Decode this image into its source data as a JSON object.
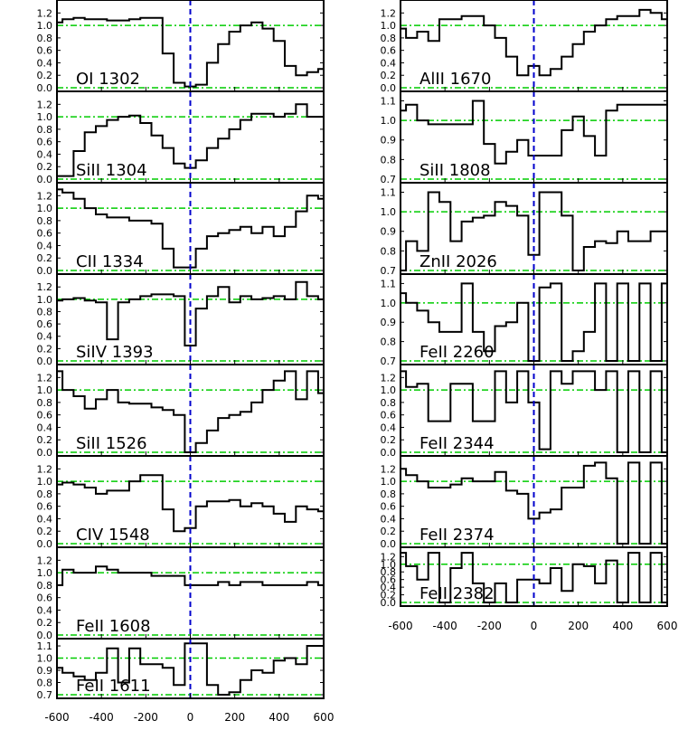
{
  "chart_data": [
    {
      "type": "line",
      "label": "OI 1302",
      "yticks": [
        "0.0",
        "0.2",
        "0.4",
        "0.6",
        "0.8",
        "1.0",
        "1.2"
      ],
      "ylim": [
        0,
        1.35
      ],
      "xlim": [
        -600,
        600
      ],
      "x": [
        -600,
        -550,
        -500,
        -450,
        -400,
        -350,
        -300,
        -250,
        -200,
        -150,
        -100,
        -50,
        0,
        50,
        100,
        150,
        200,
        250,
        300,
        350,
        400,
        450,
        500,
        550,
        600
      ],
      "values": [
        1.05,
        1.1,
        1.12,
        1.1,
        1.1,
        1.08,
        1.08,
        1.1,
        1.12,
        1.12,
        0.55,
        0.08,
        0.02,
        0.05,
        0.4,
        0.7,
        0.9,
        1.0,
        1.05,
        0.95,
        0.75,
        0.35,
        0.2,
        0.25,
        0.3
      ]
    },
    {
      "type": "line",
      "label": "SiII 1304",
      "yticks": [
        "0.0",
        "0.2",
        "0.4",
        "0.6",
        "0.8",
        "1.0",
        "1.2"
      ],
      "ylim": [
        0,
        1.35
      ],
      "xlim": [
        -600,
        600
      ],
      "x": [
        -600,
        -550,
        -500,
        -450,
        -400,
        -350,
        -300,
        -250,
        -200,
        -150,
        -100,
        -50,
        0,
        50,
        100,
        150,
        200,
        250,
        300,
        350,
        400,
        450,
        500,
        550,
        600
      ],
      "values": [
        0.05,
        0.05,
        0.45,
        0.75,
        0.85,
        0.95,
        1.0,
        1.02,
        0.9,
        0.7,
        0.5,
        0.25,
        0.18,
        0.3,
        0.5,
        0.65,
        0.8,
        0.95,
        1.05,
        1.05,
        1.0,
        1.05,
        1.2,
        1.0,
        1.0
      ]
    },
    {
      "type": "line",
      "label": "CII 1334",
      "yticks": [
        "0.0",
        "0.2",
        "0.4",
        "0.6",
        "0.8",
        "1.0",
        "1.2"
      ],
      "ylim": [
        0,
        1.35
      ],
      "xlim": [
        -600,
        600
      ],
      "x": [
        -600,
        -550,
        -500,
        -450,
        -400,
        -350,
        -300,
        -250,
        -200,
        -150,
        -100,
        -50,
        0,
        50,
        100,
        150,
        200,
        250,
        300,
        350,
        400,
        450,
        500,
        550,
        600
      ],
      "values": [
        1.3,
        1.25,
        1.15,
        1.0,
        0.9,
        0.85,
        0.85,
        0.8,
        0.8,
        0.75,
        0.35,
        0.05,
        0.05,
        0.35,
        0.55,
        0.6,
        0.65,
        0.7,
        0.6,
        0.7,
        0.55,
        0.7,
        0.95,
        1.2,
        1.15
      ]
    },
    {
      "type": "line",
      "label": "SiIV 1393",
      "yticks": [
        "0.0",
        "0.2",
        "0.4",
        "0.6",
        "0.8",
        "1.0",
        "1.2"
      ],
      "ylim": [
        0,
        1.35
      ],
      "xlim": [
        -600,
        600
      ],
      "x": [
        -600,
        -550,
        -500,
        -450,
        -400,
        -350,
        -300,
        -250,
        -200,
        -150,
        -100,
        -50,
        0,
        50,
        100,
        150,
        200,
        250,
        300,
        350,
        400,
        450,
        500,
        550,
        600
      ],
      "values": [
        0.98,
        1.0,
        1.02,
        0.98,
        0.95,
        0.35,
        0.95,
        1.0,
        1.05,
        1.08,
        1.08,
        1.05,
        0.25,
        0.85,
        1.05,
        1.2,
        0.95,
        1.05,
        1.0,
        1.02,
        1.05,
        1.0,
        1.28,
        1.05,
        1.0
      ]
    },
    {
      "type": "line",
      "label": "SiII 1526",
      "yticks": [
        "0.0",
        "0.2",
        "0.4",
        "0.6",
        "0.8",
        "1.0",
        "1.2"
      ],
      "ylim": [
        0,
        1.35
      ],
      "xlim": [
        -600,
        600
      ],
      "x": [
        -600,
        -550,
        -500,
        -450,
        -400,
        -350,
        -300,
        -250,
        -200,
        -150,
        -100,
        -50,
        0,
        50,
        100,
        150,
        200,
        250,
        300,
        350,
        400,
        450,
        500,
        550,
        600
      ],
      "values": [
        1.3,
        1.0,
        0.9,
        0.7,
        0.85,
        1.0,
        0.8,
        0.78,
        0.78,
        0.72,
        0.68,
        0.6,
        0.0,
        0.15,
        0.35,
        0.55,
        0.6,
        0.65,
        0.8,
        1.0,
        1.15,
        1.3,
        0.85,
        1.3,
        0.95
      ]
    },
    {
      "type": "line",
      "label": "CIV 1548",
      "yticks": [
        "0.0",
        "0.2",
        "0.4",
        "0.6",
        "0.8",
        "1.0",
        "1.2"
      ],
      "ylim": [
        0,
        1.35
      ],
      "xlim": [
        -600,
        600
      ],
      "x": [
        -600,
        -550,
        -500,
        -450,
        -400,
        -350,
        -300,
        -250,
        -200,
        -150,
        -100,
        -50,
        0,
        50,
        100,
        150,
        200,
        250,
        300,
        350,
        400,
        450,
        500,
        550,
        600
      ],
      "values": [
        0.95,
        0.98,
        0.95,
        0.9,
        0.8,
        0.85,
        0.85,
        1.0,
        1.1,
        1.1,
        0.55,
        0.2,
        0.25,
        0.6,
        0.68,
        0.68,
        0.7,
        0.6,
        0.65,
        0.6,
        0.48,
        0.35,
        0.6,
        0.55,
        0.52
      ]
    },
    {
      "type": "line",
      "label": "FeII 1608",
      "yticks": [
        "0.0",
        "0.2",
        "0.4",
        "0.6",
        "0.8",
        "1.0",
        "1.2"
      ],
      "ylim": [
        0,
        1.35
      ],
      "xlim": [
        -600,
        600
      ],
      "x": [
        -600,
        -550,
        -500,
        -450,
        -400,
        -350,
        -300,
        -250,
        -200,
        -150,
        -100,
        -50,
        0,
        50,
        100,
        150,
        200,
        250,
        300,
        350,
        400,
        450,
        500,
        550,
        600
      ],
      "values": [
        0.8,
        1.05,
        1.0,
        1.0,
        1.1,
        1.05,
        1.0,
        1.0,
        1.0,
        0.95,
        0.95,
        0.95,
        0.8,
        0.8,
        0.8,
        0.85,
        0.8,
        0.85,
        0.85,
        0.8,
        0.8,
        0.8,
        0.8,
        0.85,
        0.8
      ]
    },
    {
      "type": "line",
      "label": "FeII 1611",
      "yticks": [
        "0.7",
        "0.8",
        "0.9",
        "1.0",
        "1.1"
      ],
      "ylim": [
        0.7,
        1.13
      ],
      "xlim": [
        -600,
        600
      ],
      "x": [
        -600,
        -550,
        -500,
        -450,
        -400,
        -350,
        -300,
        -250,
        -200,
        -150,
        -100,
        -50,
        0,
        50,
        100,
        150,
        200,
        250,
        300,
        350,
        400,
        450,
        500,
        550,
        600
      ],
      "values": [
        0.92,
        0.88,
        0.85,
        0.82,
        0.88,
        1.08,
        0.8,
        1.08,
        0.95,
        0.95,
        0.92,
        0.78,
        1.12,
        1.12,
        0.78,
        0.7,
        0.72,
        0.82,
        0.9,
        0.88,
        0.98,
        1.0,
        0.95,
        1.1,
        1.1
      ]
    },
    {
      "type": "line",
      "label": "AlII 1670",
      "yticks": [
        "0.0",
        "0.2",
        "0.4",
        "0.6",
        "0.8",
        "1.0",
        "1.2"
      ],
      "ylim": [
        0,
        1.35
      ],
      "xlim": [
        -600,
        600
      ],
      "x": [
        -600,
        -550,
        -500,
        -450,
        -400,
        -350,
        -300,
        -250,
        -200,
        -150,
        -100,
        -50,
        0,
        50,
        100,
        150,
        200,
        250,
        300,
        350,
        400,
        450,
        500,
        550,
        600
      ],
      "values": [
        0.95,
        0.8,
        0.9,
        0.75,
        1.1,
        1.1,
        1.15,
        1.15,
        1.0,
        0.8,
        0.5,
        0.2,
        0.35,
        0.2,
        0.3,
        0.5,
        0.7,
        0.9,
        1.0,
        1.1,
        1.15,
        1.15,
        1.25,
        1.2,
        1.1
      ]
    },
    {
      "type": "line",
      "label": "SiII 1808",
      "yticks": [
        "0.7",
        "0.8",
        "0.9",
        "1.0",
        "1.1"
      ],
      "ylim": [
        0.7,
        1.13
      ],
      "xlim": [
        -600,
        600
      ],
      "x": [
        -600,
        -550,
        -500,
        -450,
        -400,
        -350,
        -300,
        -250,
        -200,
        -150,
        -100,
        -50,
        0,
        50,
        100,
        150,
        200,
        250,
        300,
        350,
        400,
        450,
        500,
        550,
        600
      ],
      "values": [
        1.05,
        1.08,
        1.0,
        0.98,
        0.98,
        0.98,
        0.98,
        1.1,
        0.88,
        0.78,
        0.84,
        0.9,
        0.82,
        0.82,
        0.82,
        0.95,
        1.02,
        0.92,
        0.82,
        1.05,
        1.08,
        1.08,
        1.08,
        1.08,
        1.08
      ]
    },
    {
      "type": "line",
      "label": "ZnII 2026",
      "yticks": [
        "0.7",
        "0.8",
        "0.9",
        "1.0",
        "1.1"
      ],
      "ylim": [
        0.7,
        1.13
      ],
      "xlim": [
        -600,
        600
      ],
      "x": [
        -600,
        -550,
        -500,
        -450,
        -400,
        -350,
        -300,
        -250,
        -200,
        -150,
        -100,
        -50,
        0,
        50,
        100,
        150,
        200,
        250,
        300,
        350,
        400,
        450,
        500,
        550,
        600
      ],
      "values": [
        0.7,
        0.85,
        0.8,
        1.1,
        1.05,
        0.85,
        0.95,
        0.97,
        0.98,
        1.05,
        1.03,
        0.98,
        0.78,
        1.1,
        1.1,
        0.98,
        0.7,
        0.82,
        0.85,
        0.84,
        0.9,
        0.85,
        0.85,
        0.9,
        0.9
      ]
    },
    {
      "type": "line",
      "label": "FeII 2260",
      "yticks": [
        "0.7",
        "0.8",
        "0.9",
        "1.0",
        "1.1"
      ],
      "ylim": [
        0.7,
        1.13
      ],
      "xlim": [
        -600,
        600
      ],
      "x": [
        -600,
        -550,
        -500,
        -450,
        -400,
        -350,
        -300,
        -250,
        -200,
        -150,
        -100,
        -50,
        0,
        50,
        100,
        150,
        200,
        250,
        300,
        350,
        400,
        450,
        500,
        550,
        600
      ],
      "values": [
        1.05,
        1.0,
        0.96,
        0.9,
        0.85,
        0.85,
        1.1,
        0.85,
        0.75,
        0.88,
        0.9,
        1.0,
        0.7,
        1.08,
        1.1,
        0.7,
        0.75,
        0.85,
        1.1,
        0.7,
        1.1,
        0.7,
        1.1,
        0.7,
        1.1
      ]
    },
    {
      "type": "line",
      "label": "FeII 2344",
      "yticks": [
        "0.0",
        "0.2",
        "0.4",
        "0.6",
        "0.8",
        "1.0",
        "1.2"
      ],
      "ylim": [
        0,
        1.35
      ],
      "xlim": [
        -600,
        600
      ],
      "x": [
        -600,
        -550,
        -500,
        -450,
        -400,
        -350,
        -300,
        -250,
        -200,
        -150,
        -100,
        -50,
        0,
        50,
        100,
        150,
        200,
        250,
        300,
        350,
        400,
        450,
        500,
        550,
        600
      ],
      "values": [
        1.3,
        1.05,
        1.1,
        0.5,
        0.5,
        1.1,
        1.1,
        0.5,
        0.5,
        1.3,
        0.8,
        1.3,
        0.8,
        0.05,
        1.3,
        1.1,
        1.3,
        1.3,
        1.0,
        1.3,
        0.0,
        1.3,
        0.0,
        1.3,
        0.0
      ]
    },
    {
      "type": "line",
      "label": "FeII 2374",
      "yticks": [
        "0.0",
        "0.2",
        "0.4",
        "0.6",
        "0.8",
        "1.0",
        "1.2"
      ],
      "ylim": [
        0,
        1.35
      ],
      "xlim": [
        -600,
        600
      ],
      "x": [
        -600,
        -550,
        -500,
        -450,
        -400,
        -350,
        -300,
        -250,
        -200,
        -150,
        -100,
        -50,
        0,
        50,
        100,
        150,
        200,
        250,
        300,
        350,
        400,
        450,
        500,
        550,
        600
      ],
      "values": [
        1.2,
        1.1,
        1.0,
        0.9,
        0.9,
        0.95,
        1.05,
        1.0,
        1.0,
        1.15,
        0.85,
        0.8,
        0.4,
        0.5,
        0.55,
        0.9,
        0.9,
        1.25,
        1.3,
        1.05,
        0.0,
        1.3,
        0.0,
        1.3,
        0.0
      ]
    },
    {
      "type": "line",
      "label": "FeII 2382",
      "yticks": [
        "0.0",
        "0.2",
        "0.4",
        "0.6",
        "0.8",
        "1.0",
        "1.2"
      ],
      "ylim": [
        0,
        1.35
      ],
      "xlim": [
        -600,
        600
      ],
      "x": [
        -600,
        -550,
        -500,
        -450,
        -400,
        -350,
        -300,
        -250,
        -200,
        -150,
        -100,
        -50,
        0,
        50,
        100,
        150,
        200,
        250,
        300,
        350,
        400,
        450,
        500,
        550,
        600
      ],
      "values": [
        1.3,
        0.95,
        0.6,
        1.3,
        0.0,
        0.9,
        1.3,
        0.5,
        0.0,
        0.5,
        0.0,
        0.6,
        0.6,
        0.5,
        0.9,
        0.3,
        1.0,
        0.95,
        0.5,
        1.1,
        0.0,
        1.3,
        0.0,
        1.3,
        0.0
      ]
    }
  ],
  "x_tick_labels": [
    "-600",
    "-400",
    "-200",
    "0",
    "200",
    "400",
    "600"
  ],
  "x_tick_values": [
    -600,
    -400,
    -200,
    0,
    200,
    400,
    600
  ],
  "colors": {
    "spectrum": "#000000",
    "continuum": "#00cc00",
    "zero_velocity": "#0000cc",
    "axes": "#000000",
    "tick_text": "#000000"
  }
}
